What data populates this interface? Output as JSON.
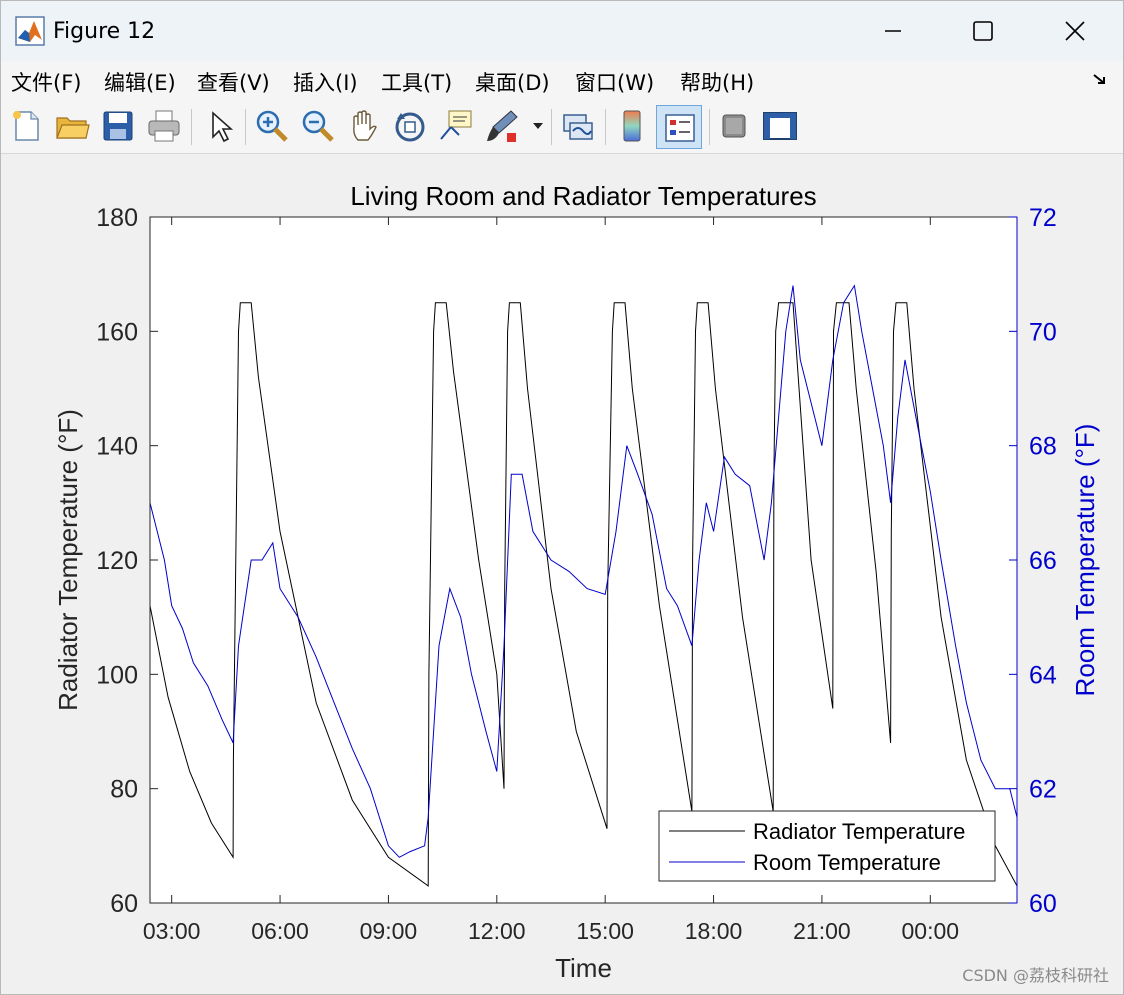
{
  "window": {
    "title": "Figure 12",
    "controls": {
      "minimize": "minimize",
      "maximize": "maximize",
      "close": "close"
    }
  },
  "menu": {
    "items": [
      {
        "label": "文件(F)",
        "name": "menu-file"
      },
      {
        "label": "编辑(E)",
        "name": "menu-edit"
      },
      {
        "label": "查看(V)",
        "name": "menu-view"
      },
      {
        "label": "插入(I)",
        "name": "menu-insert"
      },
      {
        "label": "工具(T)",
        "name": "menu-tools"
      },
      {
        "label": "桌面(D)",
        "name": "menu-desktop"
      },
      {
        "label": "窗口(W)",
        "name": "menu-window"
      },
      {
        "label": "帮助(H)",
        "name": "menu-help"
      }
    ]
  },
  "toolbar": {
    "icons": [
      "new-file-icon",
      "open-folder-icon",
      "save-icon",
      "print-icon",
      "select-arrow-icon",
      "zoom-in-icon",
      "zoom-out-icon",
      "pan-hand-icon",
      "rotate-3d-icon",
      "data-cursor-icon",
      "brush-icon",
      "link-plot-icon",
      "colorbar-icon",
      "legend-icon",
      "hide-plot-tools-icon",
      "show-plot-tools-icon"
    ]
  },
  "chart_data": {
    "type": "line",
    "title": "Living Room and Radiator Temperatures",
    "xlabel": "Time",
    "ylabel_left": "Radiator Temperature (°F)",
    "ylabel_right": "Room Temperature (°F)",
    "x_ticks": [
      "03:00",
      "06:00",
      "09:00",
      "12:00",
      "15:00",
      "18:00",
      "21:00",
      "00:00"
    ],
    "x_tick_hours": [
      3,
      6,
      9,
      12,
      15,
      18,
      21,
      24
    ],
    "xlim_hours": [
      2.4,
      26.4
    ],
    "ylim_left": [
      60,
      180
    ],
    "yticks_left": [
      60,
      80,
      100,
      120,
      140,
      160,
      180
    ],
    "ylim_right": [
      60,
      72
    ],
    "yticks_right": [
      60,
      62,
      64,
      66,
      68,
      70,
      72
    ],
    "legend": {
      "placement": "bottom-right",
      "entries": [
        "Radiator Temperature",
        "Room Temperature"
      ]
    },
    "colors": {
      "radiator": "#000000",
      "room": "#0000cc"
    },
    "series": [
      {
        "name": "Radiator Temperature",
        "axis": "left",
        "x": [
          2.4,
          2.9,
          3.5,
          4.1,
          4.7,
          4.71,
          4.85,
          4.9,
          5.2,
          5.4,
          6.0,
          7.0,
          8.0,
          9.0,
          10.1,
          10.12,
          10.25,
          10.3,
          10.6,
          10.8,
          11.5,
          12.0,
          12.2,
          12.22,
          12.3,
          12.35,
          12.65,
          12.85,
          13.5,
          14.2,
          15.05,
          15.07,
          15.2,
          15.25,
          15.55,
          15.75,
          16.5,
          17.4,
          17.42,
          17.5,
          17.55,
          17.85,
          18.05,
          18.8,
          19.65,
          19.67,
          19.72,
          19.8,
          20.2,
          20.7,
          21.3,
          21.32,
          21.4,
          21.45,
          21.75,
          21.95,
          22.5,
          22.9,
          22.92,
          22.98,
          23.05,
          23.35,
          23.55,
          24.3,
          25.0,
          25.8,
          26.4
        ],
        "values": [
          112,
          96,
          83,
          74,
          68,
          85,
          160,
          165,
          165,
          152,
          125,
          95,
          78,
          68,
          63,
          100,
          160,
          165,
          165,
          153,
          120,
          100,
          80,
          115,
          160,
          165,
          165,
          150,
          115,
          90,
          73,
          115,
          160,
          165,
          165,
          150,
          112,
          76,
          120,
          160,
          165,
          165,
          150,
          110,
          76,
          135,
          160,
          165,
          165,
          120,
          94,
          160,
          165,
          165,
          165,
          150,
          118,
          88,
          125,
          160,
          165,
          165,
          150,
          110,
          85,
          70,
          63
        ]
      },
      {
        "name": "Room Temperature",
        "axis": "right",
        "x": [
          2.4,
          2.6,
          2.8,
          3.0,
          3.3,
          3.6,
          4.0,
          4.4,
          4.7,
          4.85,
          5.2,
          5.5,
          5.8,
          6.0,
          6.5,
          7.0,
          7.5,
          8.0,
          8.5,
          9.0,
          9.3,
          9.6,
          10.0,
          10.1,
          10.2,
          10.4,
          10.7,
          11.0,
          11.3,
          11.7,
          12.0,
          12.2,
          12.4,
          12.7,
          13.0,
          13.5,
          14.0,
          14.5,
          15.0,
          15.3,
          15.6,
          15.9,
          16.3,
          16.7,
          17.0,
          17.4,
          17.6,
          17.8,
          18.0,
          18.3,
          18.6,
          19.0,
          19.4,
          19.6,
          19.8,
          20.0,
          20.2,
          20.4,
          20.6,
          20.8,
          21.0,
          21.3,
          21.6,
          21.9,
          22.1,
          22.4,
          22.7,
          22.9,
          23.1,
          23.3,
          23.6,
          24.0,
          24.3,
          24.7,
          25.0,
          25.4,
          25.8,
          26.2,
          26.4
        ],
        "values": [
          67.0,
          66.5,
          66.0,
          65.2,
          64.8,
          64.2,
          63.8,
          63.2,
          62.8,
          64.5,
          66.0,
          66.0,
          66.3,
          65.5,
          65.0,
          64.3,
          63.5,
          62.7,
          62.0,
          61.0,
          60.8,
          60.9,
          61.0,
          61.5,
          62.5,
          64.5,
          65.5,
          65.0,
          64.0,
          63.0,
          62.3,
          64.5,
          67.5,
          67.5,
          66.5,
          66.0,
          65.8,
          65.5,
          65.4,
          66.5,
          68.0,
          67.5,
          66.8,
          65.5,
          65.2,
          64.5,
          66.0,
          67.0,
          66.5,
          67.8,
          67.5,
          67.3,
          66.0,
          67.0,
          68.5,
          70.0,
          70.8,
          69.5,
          69.0,
          68.5,
          68.0,
          69.5,
          70.5,
          70.8,
          70.0,
          69.0,
          68.0,
          67.0,
          68.5,
          69.5,
          68.5,
          67.2,
          66.0,
          64.5,
          63.5,
          62.5,
          62.0,
          62.0,
          61.5
        ]
      }
    ]
  },
  "watermark": "CSDN @荔枝科研社"
}
